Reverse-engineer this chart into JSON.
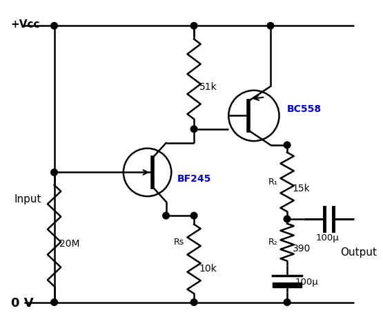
{
  "bg_color": "#ffffff",
  "line_color": "#000000",
  "fig_width": 5.55,
  "fig_height": 4.69,
  "dpi": 100,
  "labels": {
    "vcc": "+Vcc",
    "gnd": "0 V",
    "r51k": "51k",
    "r20m": "20M",
    "rs": "Rs",
    "r10k": "10k",
    "r1": "R₁",
    "r15k": "15k",
    "r2": "R₂",
    "r390": "390",
    "cap100u_right": "100μ",
    "cap100u_bot": "100μ",
    "bf245": "BF245",
    "bc558": "BC558",
    "input": "Input",
    "output": "Output"
  }
}
